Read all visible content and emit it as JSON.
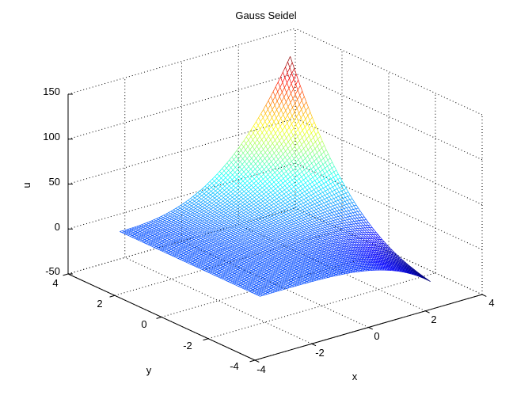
{
  "chart_data": {
    "type": "surface-mesh",
    "title": "Gauss Seidel",
    "xlabel": "x",
    "ylabel": "y",
    "zlabel": "u",
    "xlim": [
      -4,
      4
    ],
    "ylim": [
      -4,
      4
    ],
    "zlim": [
      -50,
      150
    ],
    "xticks": [
      -4,
      -2,
      0,
      2,
      4
    ],
    "yticks": [
      -4,
      -2,
      0,
      2,
      4
    ],
    "zticks": [
      -50,
      0,
      50,
      100,
      150
    ],
    "xtick_labels": [
      "-4",
      "-2",
      "0",
      "2",
      "4"
    ],
    "ytick_labels": [
      "-4",
      "-2",
      "0",
      "2",
      "4"
    ],
    "ztick_labels": [
      "-50",
      "0",
      "50",
      "100",
      "150"
    ],
    "grid": true,
    "colormap": "jet",
    "domain": {
      "x": [
        -3,
        3
      ],
      "y": [
        -3,
        3
      ]
    },
    "corner_values": {
      "x-3_y-3": 0,
      "x3_y-3": -12,
      "x-3_y3": 0,
      "x3_y3": 140
    },
    "peak": {
      "x": 3,
      "y": 3,
      "u": 140
    },
    "trough": {
      "x": 3,
      "y": -3,
      "u": -12
    }
  }
}
